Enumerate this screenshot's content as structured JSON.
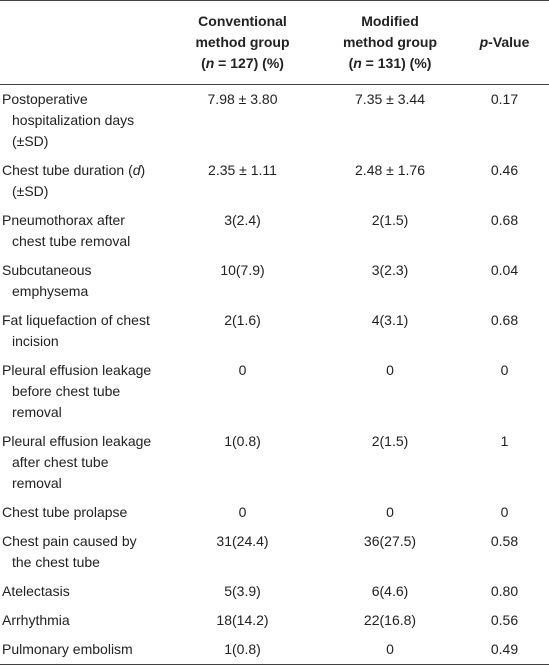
{
  "table": {
    "header": [
      [
        ""
      ],
      [
        "Conventional method group (",
        "n",
        " = 127) (%)"
      ],
      [
        "Modified method group (",
        "n",
        " = 131) (%)"
      ],
      [
        "",
        "p",
        "-Value"
      ]
    ],
    "rows": [
      [
        [
          "Postoperative hospitalization days (±SD)"
        ],
        "7.98 ± 3.80",
        "7.35 ± 3.44",
        "0.17"
      ],
      [
        [
          "Chest tube duration (",
          "d",
          ") (±SD)"
        ],
        "2.35 ± 1.11",
        "2.48 ± 1.76",
        "0.46"
      ],
      [
        [
          "Pneumothorax after chest tube removal"
        ],
        "3(2.4)",
        "2(1.5)",
        "0.68"
      ],
      [
        [
          "Subcutaneous emphysema"
        ],
        "10(7.9)",
        "3(2.3)",
        "0.04"
      ],
      [
        [
          "Fat liquefaction of chest incision"
        ],
        "2(1.6)",
        "4(3.1)",
        "0.68"
      ],
      [
        [
          "Pleural effusion leakage before chest tube removal"
        ],
        "0",
        "0",
        "0"
      ],
      [
        [
          "Pleural effusion leakage after chest tube removal"
        ],
        "1(0.8)",
        "2(1.5)",
        "1"
      ],
      [
        [
          "Chest tube prolapse"
        ],
        "0",
        "0",
        "0"
      ],
      [
        [
          "Chest pain caused by the chest tube"
        ],
        "31(24.4)",
        "36(27.5)",
        "0.58"
      ],
      [
        [
          "Atelectasis"
        ],
        "5(3.9)",
        "6(4.6)",
        "0.80"
      ],
      [
        [
          "Arrhythmia"
        ],
        "18(14.2)",
        "22(16.8)",
        "0.56"
      ],
      [
        [
          "Pulmonary embolism"
        ],
        "1(0.8)",
        "0",
        "0.49"
      ]
    ]
  }
}
